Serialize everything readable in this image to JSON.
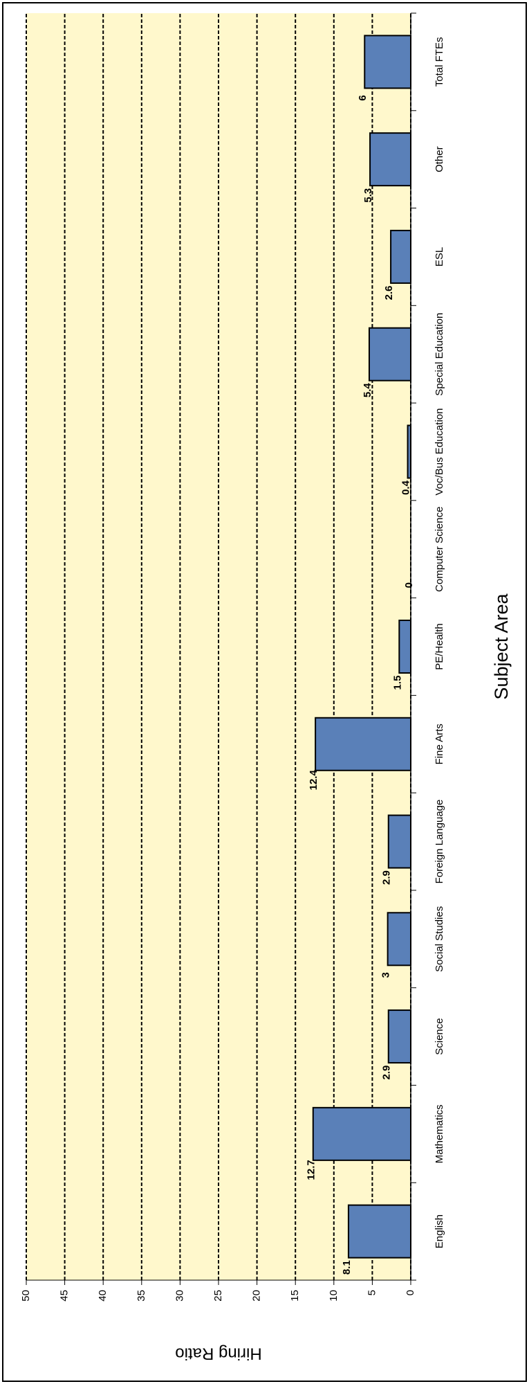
{
  "chart_data": {
    "type": "bar",
    "x_label": "Subject Area",
    "y_label": "Hiring Ratio",
    "categories": [
      "English",
      "Mathematics",
      "Science",
      "Social Studies",
      "Foreign Language",
      "Fine Arts",
      "PE/Health",
      "Computer Science",
      "Voc/Bus Education",
      "Special Education",
      "ESL",
      "Other",
      "Total FTEs"
    ],
    "values": [
      8.1,
      12.7,
      2.9,
      3,
      2.9,
      12.4,
      1.5,
      0,
      0.4,
      5.4,
      2.6,
      5.3,
      6
    ],
    "color": "#5a80b8",
    "ylim": [
      0,
      50
    ],
    "yticks": [
      0,
      5,
      10,
      15,
      20,
      25,
      30,
      35,
      40,
      45,
      50
    ],
    "grid": true
  }
}
